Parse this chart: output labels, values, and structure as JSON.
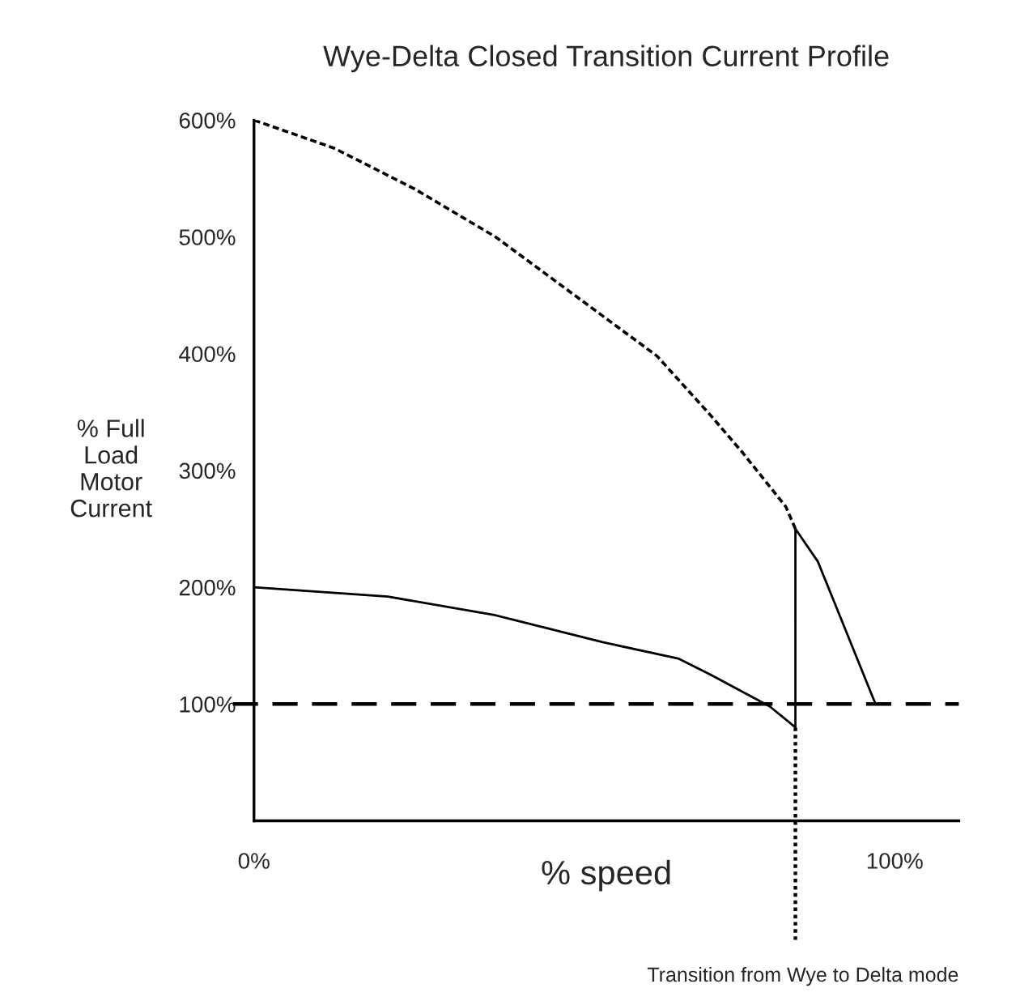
{
  "chart_data": {
    "type": "line",
    "title": "Wye-Delta Closed Transition Current Profile",
    "xlabel": "% speed",
    "ylabel": "% Full\nLoad\nMotor\nCurrent",
    "series": [
      {
        "color": "#000000",
        "line_style": "dashed",
        "x": [
          0,
          12.5,
          25.1,
          37.7,
          50.3,
          62.9,
          71.3,
          76.3,
          83,
          84.5
        ],
        "values": [
          600,
          576,
          541,
          500,
          449,
          398,
          347,
          315,
          269,
          250
        ]
      },
      {
        "color": "#000000",
        "line_style": "solid",
        "x": [
          0,
          20.9,
          37.7,
          54.4,
          66.2,
          71.3,
          80.5,
          84.5,
          84.5,
          88,
          91.4,
          97
        ],
        "values": [
          200,
          192,
          176,
          153,
          139,
          125,
          98,
          80,
          250,
          222,
          176,
          100
        ]
      }
    ],
    "xlim": [
      0,
      110
    ],
    "xticks": [
      {
        "value": 0,
        "label": "0%"
      },
      {
        "value": 100,
        "label": "100%"
      }
    ],
    "ylim": [
      0,
      600
    ],
    "yticks": [
      {
        "value": 100,
        "label": "100%"
      },
      {
        "value": 200,
        "label": "200%"
      },
      {
        "value": 300,
        "label": "300%"
      },
      {
        "value": 400,
        "label": "400%"
      },
      {
        "value": 500,
        "label": "500%"
      },
      {
        "value": 600,
        "label": "600%"
      }
    ],
    "ref_lines": [
      {
        "axis": "y",
        "value": 100,
        "line_style": "long_dashed",
        "color": "#000000"
      },
      {
        "axis": "x",
        "value": 84.5,
        "line_style": "dotted",
        "color": "#000000",
        "label": "Transition from Wye to Delta mode"
      }
    ],
    "grid": false,
    "legend": false,
    "marker": "none"
  }
}
